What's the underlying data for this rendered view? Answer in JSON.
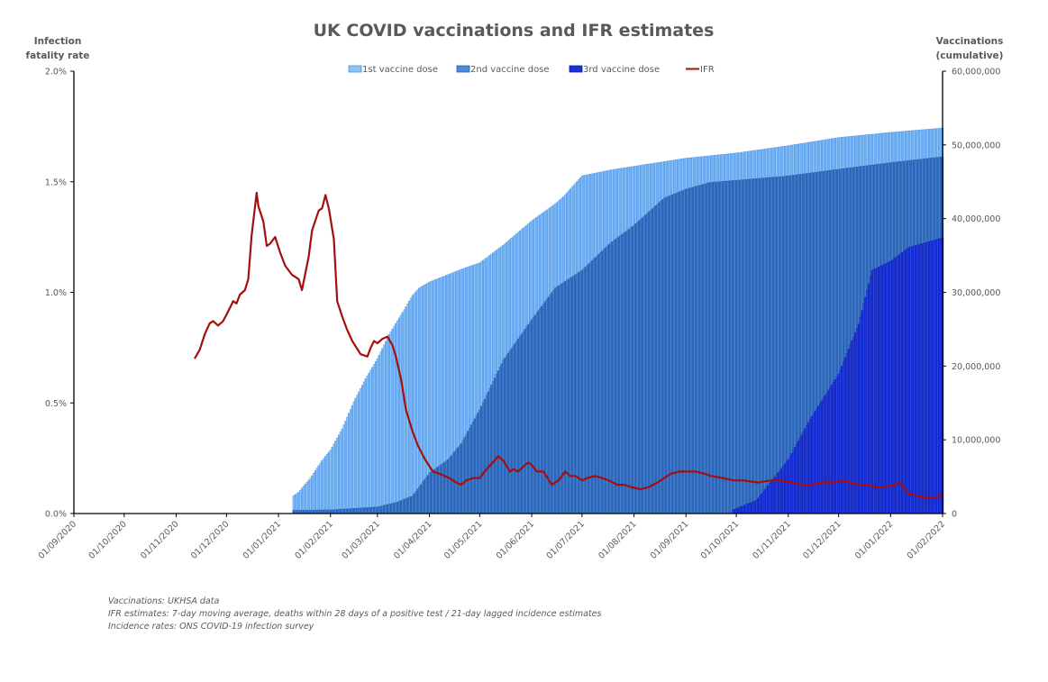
{
  "chart_data": {
    "type": "bar+line",
    "title": "UK COVID vaccinations and IFR estimates",
    "ylabel_left": [
      "Infection",
      "fatality rate"
    ],
    "ylabel_right": [
      "Vaccinations",
      "(cumulative)"
    ],
    "xlabel": "",
    "x_range": [
      "2020-09-01",
      "2022-02-01"
    ],
    "ylim_left": [
      0,
      0.02
    ],
    "ylim_right": [
      0,
      60000000
    ],
    "y_ticks_left": [
      "0.0%",
      "0.5%",
      "1.0%",
      "1.5%",
      "2.0%"
    ],
    "y_ticks_left_values": [
      0,
      0.005,
      0.01,
      0.015,
      0.02
    ],
    "y_ticks_right": [
      "0",
      "10,000,000",
      "20,000,000",
      "30,000,000",
      "40,000,000",
      "50,000,000",
      "60,000,000"
    ],
    "y_ticks_right_values": [
      0,
      10000000,
      20000000,
      30000000,
      40000000,
      50000000,
      60000000
    ],
    "x_ticks": [
      "01/09/2020",
      "01/10/2020",
      "01/11/2020",
      "01/12/2020",
      "01/01/2021",
      "01/02/2021",
      "01/03/2021",
      "01/04/2021",
      "01/05/2021",
      "01/06/2021",
      "01/07/2021",
      "01/08/2021",
      "01/09/2021",
      "01/10/2021",
      "01/11/2021",
      "01/12/2021",
      "01/01/2022",
      "01/02/2022"
    ],
    "x_tick_dates": [
      "2020-09-01",
      "2020-10-01",
      "2020-11-01",
      "2020-12-01",
      "2021-01-01",
      "2021-02-01",
      "2021-03-01",
      "2021-04-01",
      "2021-05-01",
      "2021-06-01",
      "2021-07-01",
      "2021-08-01",
      "2021-09-01",
      "2021-10-01",
      "2021-11-01",
      "2021-12-01",
      "2022-01-01",
      "2022-02-01"
    ],
    "grid": false,
    "legend": {
      "placement": "top-center"
    },
    "series": [
      {
        "name": "1st vaccine dose",
        "kind": "bar",
        "axis": "right",
        "color": "#6fb0f5",
        "edge": "#4a8fe0",
        "points": [
          [
            "2021-01-10",
            2400000
          ],
          [
            "2021-01-13",
            2900000
          ],
          [
            "2021-01-20",
            4800000
          ],
          [
            "2021-01-27",
            7200000
          ],
          [
            "2021-02-01",
            8600000
          ],
          [
            "2021-02-08",
            11500000
          ],
          [
            "2021-02-15",
            15200000
          ],
          [
            "2021-02-22",
            18300000
          ],
          [
            "2021-03-01",
            21000000
          ],
          [
            "2021-03-08",
            24300000
          ],
          [
            "2021-03-15",
            26900000
          ],
          [
            "2021-03-22",
            29600000
          ],
          [
            "2021-03-26",
            30600000
          ],
          [
            "2021-04-01",
            31400000
          ],
          [
            "2021-04-12",
            32400000
          ],
          [
            "2021-04-22",
            33300000
          ],
          [
            "2021-05-01",
            34000000
          ],
          [
            "2021-05-15",
            36400000
          ],
          [
            "2021-06-01",
            39700000
          ],
          [
            "2021-06-15",
            42000000
          ],
          [
            "2021-06-20",
            43000000
          ],
          [
            "2021-07-01",
            45800000
          ],
          [
            "2021-07-18",
            46600000
          ],
          [
            "2021-08-01",
            47100000
          ],
          [
            "2021-09-01",
            48200000
          ],
          [
            "2021-10-01",
            48900000
          ],
          [
            "2021-11-01",
            49900000
          ],
          [
            "2021-12-01",
            51000000
          ],
          [
            "2022-01-01",
            51700000
          ],
          [
            "2022-02-01",
            52300000
          ]
        ]
      },
      {
        "name": "2nd vaccine dose",
        "kind": "bar",
        "axis": "right",
        "color": "#4280d6",
        "edge": "#2c5fa8",
        "points": [
          [
            "2021-01-10",
            450000
          ],
          [
            "2021-02-01",
            500000
          ],
          [
            "2021-03-01",
            900000
          ],
          [
            "2021-03-12",
            1500000
          ],
          [
            "2021-03-22",
            2400000
          ],
          [
            "2021-04-01",
            5500000
          ],
          [
            "2021-04-12",
            7300000
          ],
          [
            "2021-04-20",
            9500000
          ],
          [
            "2021-05-01",
            14100000
          ],
          [
            "2021-05-15",
            20800000
          ],
          [
            "2021-06-01",
            26300000
          ],
          [
            "2021-06-15",
            30600000
          ],
          [
            "2021-07-01",
            33000000
          ],
          [
            "2021-07-18",
            36700000
          ],
          [
            "2021-08-01",
            39100000
          ],
          [
            "2021-08-19",
            42800000
          ],
          [
            "2021-09-01",
            44000000
          ],
          [
            "2021-09-15",
            44900000
          ],
          [
            "2021-10-01",
            45200000
          ],
          [
            "2021-11-01",
            45800000
          ],
          [
            "2021-12-01",
            46700000
          ],
          [
            "2022-01-01",
            47600000
          ],
          [
            "2022-02-01",
            48400000
          ]
        ]
      },
      {
        "name": "3rd vaccine dose",
        "kind": "bar",
        "axis": "right",
        "color": "#1a2fd6",
        "edge": "#1020a0",
        "points": [
          [
            "2021-09-29",
            500000
          ],
          [
            "2021-10-13",
            1800000
          ],
          [
            "2021-11-01",
            7300000
          ],
          [
            "2021-11-14",
            12800000
          ],
          [
            "2021-12-01",
            18900000
          ],
          [
            "2021-12-13",
            25700000
          ],
          [
            "2021-12-21",
            33000000
          ],
          [
            "2022-01-01",
            34200000
          ],
          [
            "2022-01-12",
            36100000
          ],
          [
            "2022-02-01",
            37400000
          ]
        ]
      },
      {
        "name": "IFR",
        "kind": "line",
        "axis": "left",
        "color": "#a50e0e",
        "points": [
          [
            "2020-11-12",
            0.007
          ],
          [
            "2020-11-15",
            0.0074
          ],
          [
            "2020-11-18",
            0.0081
          ],
          [
            "2020-11-21",
            0.0086
          ],
          [
            "2020-11-23",
            0.0087
          ],
          [
            "2020-11-26",
            0.0085
          ],
          [
            "2020-11-29",
            0.0087
          ],
          [
            "2020-12-01",
            0.009
          ],
          [
            "2020-12-03",
            0.0093
          ],
          [
            "2020-12-05",
            0.0096
          ],
          [
            "2020-12-07",
            0.0095
          ],
          [
            "2020-12-09",
            0.0099
          ],
          [
            "2020-12-12",
            0.0101
          ],
          [
            "2020-12-14",
            0.0106
          ],
          [
            "2020-12-16",
            0.0126
          ],
          [
            "2020-12-19",
            0.0145
          ],
          [
            "2020-12-20",
            0.0139
          ],
          [
            "2020-12-23",
            0.0132
          ],
          [
            "2020-12-25",
            0.0121
          ],
          [
            "2020-12-27",
            0.0122
          ],
          [
            "2020-12-30",
            0.0125
          ],
          [
            "2021-01-02",
            0.0118
          ],
          [
            "2021-01-05",
            0.0112
          ],
          [
            "2021-01-09",
            0.0108
          ],
          [
            "2021-01-13",
            0.0106
          ],
          [
            "2021-01-15",
            0.0101
          ],
          [
            "2021-01-19",
            0.0116
          ],
          [
            "2021-01-21",
            0.0128
          ],
          [
            "2021-01-25",
            0.0137
          ],
          [
            "2021-01-27",
            0.0138
          ],
          [
            "2021-01-29",
            0.0144
          ],
          [
            "2021-01-31",
            0.0138
          ],
          [
            "2021-02-03",
            0.0124
          ],
          [
            "2021-02-05",
            0.0096
          ],
          [
            "2021-02-08",
            0.0089
          ],
          [
            "2021-02-11",
            0.0083
          ],
          [
            "2021-02-14",
            0.0078
          ],
          [
            "2021-02-19",
            0.0072
          ],
          [
            "2021-02-23",
            0.0071
          ],
          [
            "2021-02-25",
            0.0075
          ],
          [
            "2021-02-27",
            0.0078
          ],
          [
            "2021-03-01",
            0.0077
          ],
          [
            "2021-03-04",
            0.0079
          ],
          [
            "2021-03-07",
            0.008
          ],
          [
            "2021-03-10",
            0.0076
          ],
          [
            "2021-03-12",
            0.0071
          ],
          [
            "2021-03-15",
            0.0061
          ],
          [
            "2021-03-18",
            0.0047
          ],
          [
            "2021-03-22",
            0.0037
          ],
          [
            "2021-03-25",
            0.0031
          ],
          [
            "2021-03-29",
            0.0025
          ],
          [
            "2021-04-03",
            0.0019
          ],
          [
            "2021-04-07",
            0.0018
          ],
          [
            "2021-04-13",
            0.0016
          ],
          [
            "2021-04-17",
            0.0014
          ],
          [
            "2021-04-20",
            0.0013
          ],
          [
            "2021-04-23",
            0.0015
          ],
          [
            "2021-04-27",
            0.0016
          ],
          [
            "2021-05-01",
            0.0016
          ],
          [
            "2021-05-05",
            0.002
          ],
          [
            "2021-05-10",
            0.0024
          ],
          [
            "2021-05-12",
            0.0026
          ],
          [
            "2021-05-15",
            0.0024
          ],
          [
            "2021-05-19",
            0.0019
          ],
          [
            "2021-05-21",
            0.002
          ],
          [
            "2021-05-24",
            0.0019
          ],
          [
            "2021-05-28",
            0.0022
          ],
          [
            "2021-05-30",
            0.0023
          ],
          [
            "2021-06-01",
            0.0022
          ],
          [
            "2021-06-04",
            0.0019
          ],
          [
            "2021-06-08",
            0.0019
          ],
          [
            "2021-06-13",
            0.0013
          ],
          [
            "2021-06-17",
            0.0015
          ],
          [
            "2021-06-21",
            0.0019
          ],
          [
            "2021-06-24",
            0.0017
          ],
          [
            "2021-06-27",
            0.0017
          ],
          [
            "2021-07-01",
            0.0015
          ],
          [
            "2021-07-04",
            0.0016
          ],
          [
            "2021-07-09",
            0.0017
          ],
          [
            "2021-07-13",
            0.0016
          ],
          [
            "2021-07-17",
            0.0015
          ],
          [
            "2021-07-22",
            0.0013
          ],
          [
            "2021-07-26",
            0.0013
          ],
          [
            "2021-07-30",
            0.0012
          ],
          [
            "2021-08-05",
            0.0011
          ],
          [
            "2021-08-10",
            0.0012
          ],
          [
            "2021-08-15",
            0.0014
          ],
          [
            "2021-08-19",
            0.0016
          ],
          [
            "2021-08-23",
            0.0018
          ],
          [
            "2021-08-28",
            0.0019
          ],
          [
            "2021-09-02",
            0.0019
          ],
          [
            "2021-09-07",
            0.0019
          ],
          [
            "2021-09-12",
            0.0018
          ],
          [
            "2021-09-16",
            0.0017
          ],
          [
            "2021-09-23",
            0.0016
          ],
          [
            "2021-09-29",
            0.0015
          ],
          [
            "2021-10-05",
            0.0015
          ],
          [
            "2021-10-14",
            0.0014
          ],
          [
            "2021-10-22",
            0.0015
          ],
          [
            "2021-10-27",
            0.0015
          ],
          [
            "2021-11-03",
            0.0014
          ],
          [
            "2021-11-09",
            0.0013
          ],
          [
            "2021-11-16",
            0.0013
          ],
          [
            "2021-11-20",
            0.0014
          ],
          [
            "2021-11-27",
            0.0014
          ],
          [
            "2021-12-03",
            0.0015
          ],
          [
            "2021-12-07",
            0.0014
          ],
          [
            "2021-12-13",
            0.0013
          ],
          [
            "2021-12-18",
            0.0013
          ],
          [
            "2021-12-23",
            0.0012
          ],
          [
            "2021-12-29",
            0.0012
          ],
          [
            "2022-01-03",
            0.0013
          ],
          [
            "2022-01-06",
            0.0014
          ],
          [
            "2022-01-09",
            0.0012
          ],
          [
            "2022-01-12",
            0.0009
          ],
          [
            "2022-01-17",
            0.0008
          ],
          [
            "2022-01-23",
            0.0007
          ],
          [
            "2022-01-27",
            0.0007
          ],
          [
            "2022-01-31",
            0.0008
          ],
          [
            "2022-02-01",
            0.0009
          ]
        ]
      }
    ],
    "footnotes": [
      "Vaccinations: UKHSA data",
      "IFR estimates: 7-day moving average, deaths within 28 days of a positive test / 21-day lagged incidence estimates",
      "Incidence rates: ONS COVID-19 infection survey"
    ]
  }
}
